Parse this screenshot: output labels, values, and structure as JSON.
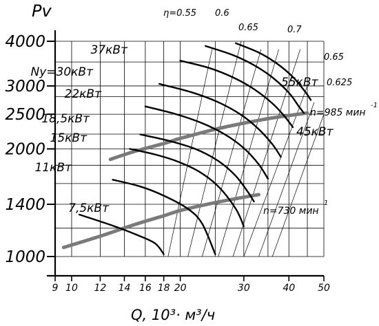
{
  "chart_data": {
    "type": "line",
    "title": "",
    "xlabel": "Q, 10³· м³/ч",
    "ylabel": "Pv",
    "x_axis": {
      "scale": "log",
      "range": [
        9,
        50
      ],
      "ticks": [
        9,
        10,
        12,
        14,
        16,
        18,
        20,
        30,
        40,
        50
      ]
    },
    "y_axis": {
      "scale": "log",
      "range": [
        1000,
        4000
      ],
      "ticks": [
        1000,
        1400,
        2000,
        2500,
        3000,
        4000
      ]
    },
    "grid": true,
    "speed_curves": [
      {
        "label": "n=985 мин",
        "superscript": "-1",
        "points": [
          [
            12.8,
            1870
          ],
          [
            15,
            1970
          ],
          [
            18,
            2070
          ],
          [
            20,
            2140
          ],
          [
            25,
            2270
          ],
          [
            30,
            2360
          ],
          [
            35,
            2430
          ],
          [
            40,
            2480
          ],
          [
            45,
            2520
          ]
        ]
      },
      {
        "label": "n=730 мин",
        "superscript": "1",
        "points": [
          [
            9.5,
            1060
          ],
          [
            12,
            1140
          ],
          [
            15,
            1230
          ],
          [
            18,
            1300
          ],
          [
            20,
            1345
          ],
          [
            25,
            1415
          ],
          [
            30,
            1465
          ],
          [
            33,
            1490
          ]
        ]
      }
    ],
    "power_curves": [
      {
        "label": "7,5кВт",
        "points": [
          [
            10.5,
            1310
          ],
          [
            13,
            1220
          ],
          [
            15,
            1155
          ],
          [
            17,
            1090
          ],
          [
            18,
            1015
          ]
        ]
      },
      {
        "label": "11кВт",
        "points": [
          [
            13,
            1640
          ],
          [
            15.5,
            1570
          ],
          [
            18,
            1480
          ],
          [
            21,
            1360
          ],
          [
            23,
            1235
          ],
          [
            25,
            1015
          ]
        ]
      },
      {
        "label": "15кВт",
        "points": [
          [
            14.5,
            2000
          ],
          [
            17,
            1930
          ],
          [
            19.5,
            1850
          ],
          [
            22.5,
            1730
          ],
          [
            25.5,
            1570
          ],
          [
            28.5,
            1360
          ],
          [
            30,
            1215
          ]
        ]
      },
      {
        "label": "18,5кВт",
        "points": [
          [
            15.5,
            2195
          ],
          [
            18.5,
            2110
          ],
          [
            22,
            2000
          ],
          [
            25.5,
            1850
          ],
          [
            28.5,
            1680
          ],
          [
            30.8,
            1515
          ],
          [
            32,
            1425
          ]
        ]
      },
      {
        "label": "22кВт",
        "points": [
          [
            16,
            2630
          ],
          [
            19.5,
            2500
          ],
          [
            23,
            2360
          ],
          [
            26.5,
            2200
          ],
          [
            30,
            2010
          ],
          [
            33,
            1810
          ],
          [
            35,
            1650
          ]
        ]
      },
      {
        "label": "Ny=30кВт",
        "points": [
          [
            17.5,
            3040
          ],
          [
            21.5,
            2880
          ],
          [
            25.5,
            2700
          ],
          [
            29.5,
            2490
          ],
          [
            33,
            2270
          ],
          [
            36,
            2060
          ],
          [
            38,
            1900
          ]
        ]
      },
      {
        "label": "37кВт",
        "points": [
          [
            20,
            3530
          ],
          [
            24,
            3370
          ],
          [
            28,
            3170
          ],
          [
            32,
            2940
          ],
          [
            36,
            2680
          ],
          [
            39,
            2460
          ],
          [
            41,
            2300
          ]
        ]
      },
      {
        "label": "45кВт",
        "points": [
          [
            23.5,
            3880
          ],
          [
            28,
            3660
          ],
          [
            32,
            3430
          ],
          [
            36,
            3170
          ],
          [
            40,
            2870
          ],
          [
            42.5,
            2640
          ],
          [
            44,
            2520
          ]
        ]
      },
      {
        "label": "55кВт",
        "points": [
          [
            28.5,
            3950
          ],
          [
            33,
            3720
          ],
          [
            37,
            3470
          ],
          [
            41,
            3180
          ],
          [
            44.5,
            2880
          ],
          [
            46,
            2740
          ]
        ]
      }
    ],
    "efficiency_lines": [
      {
        "label": "η=0.55",
        "points": [
          [
            18.5,
            1000
          ],
          [
            24.5,
            3800
          ]
        ]
      },
      {
        "label": "0.6",
        "points": [
          [
            21,
            1000
          ],
          [
            29.5,
            4000
          ]
        ]
      },
      {
        "label": "",
        "points": [
          [
            23,
            1000
          ],
          [
            33.5,
            3800
          ]
        ]
      },
      {
        "label": "0.65",
        "points": [
          [
            25.5,
            1000
          ],
          [
            37.5,
            3800
          ]
        ]
      },
      {
        "label": "",
        "points": [
          [
            28,
            1000
          ],
          [
            43,
            3800
          ]
        ]
      },
      {
        "label": "0.7",
        "points": [
          [
            30,
            1000
          ],
          [
            45,
            3000
          ]
        ]
      },
      {
        "label": "0.65",
        "points": [
          [
            33,
            1000
          ],
          [
            47,
            2700
          ]
        ]
      },
      {
        "label": "0.625",
        "points": [
          [
            36,
            1000
          ],
          [
            50,
            2500
          ]
        ]
      }
    ],
    "annotations": {
      "eta_055": "η=0.55",
      "eta_06": "0.6",
      "eta_065_top": "0.65",
      "eta_07": "0.7",
      "eta_065_right": "0.65",
      "eta_0625": "0.625",
      "p55": "55кВт",
      "p45": "45кВт"
    }
  }
}
